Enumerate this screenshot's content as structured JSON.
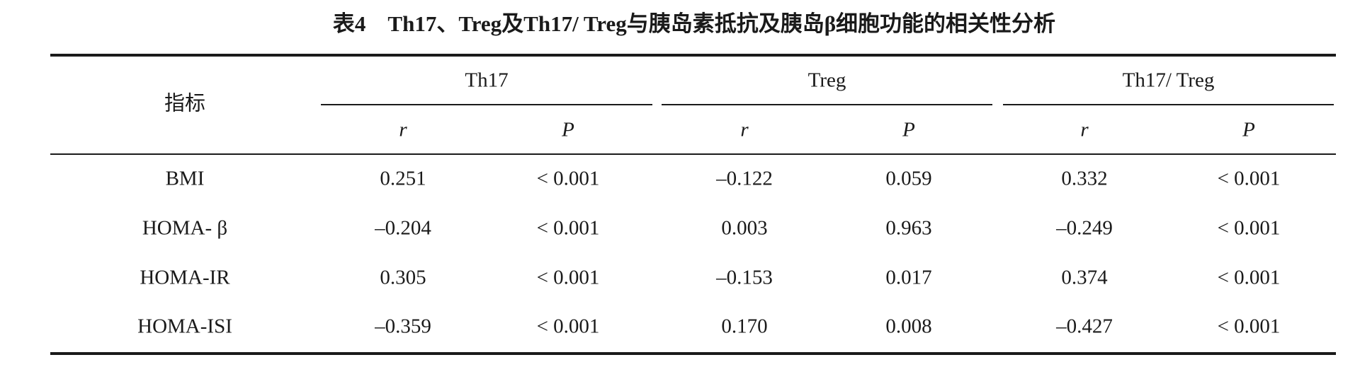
{
  "title": "表4　Th17、Treg及Th17/ Treg与胰岛素抵抗及胰岛β细胞功能的相关性分析",
  "table": {
    "index_label": "指标",
    "groups": [
      {
        "name": "Th17",
        "columns": [
          "r",
          "P"
        ]
      },
      {
        "name": "Treg",
        "columns": [
          "r",
          "P"
        ]
      },
      {
        "name": "Th17/ Treg",
        "columns": [
          "r",
          "P"
        ]
      }
    ],
    "rows": [
      {
        "label": "BMI",
        "cells": [
          "0.251",
          "< 0.001",
          "–0.122",
          "0.059",
          "0.332",
          "< 0.001"
        ]
      },
      {
        "label": "HOMA- β",
        "cells": [
          "–0.204",
          "< 0.001",
          "0.003",
          "0.963",
          "–0.249",
          "< 0.001"
        ]
      },
      {
        "label": "HOMA-IR",
        "cells": [
          "0.305",
          "< 0.001",
          "–0.153",
          "0.017",
          "0.374",
          "< 0.001"
        ]
      },
      {
        "label": "HOMA-ISI",
        "cells": [
          "–0.359",
          "< 0.001",
          "0.170",
          "0.008",
          "–0.427",
          "< 0.001"
        ]
      }
    ]
  }
}
